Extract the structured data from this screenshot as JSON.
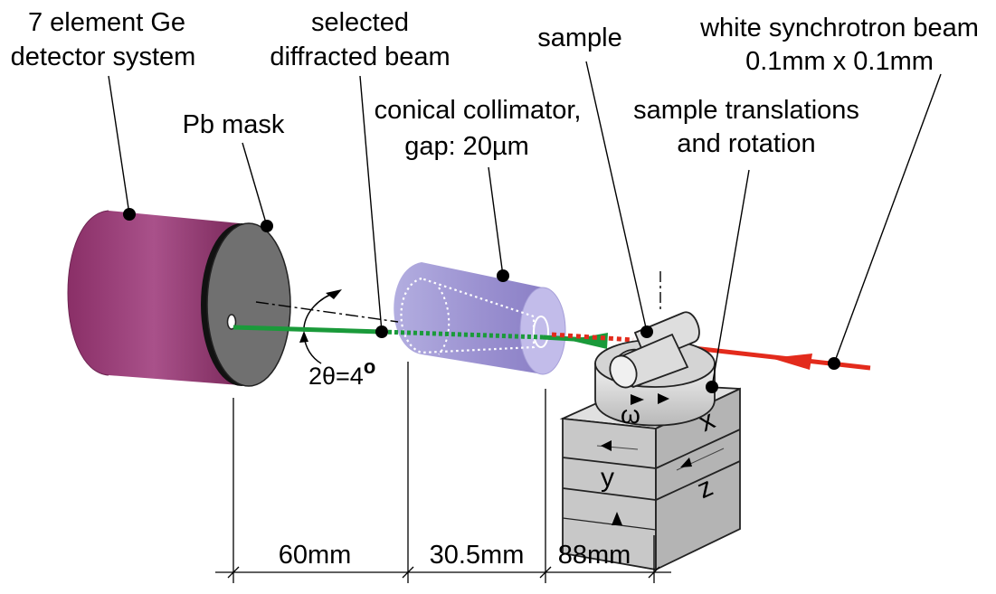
{
  "labels": {
    "detector": [
      "7 element Ge",
      "detector system"
    ],
    "diffracted": [
      "selected",
      "diffracted beam"
    ],
    "sample": "sample",
    "beam": [
      "white synchrotron beam",
      "0.1mm x 0.1mm"
    ],
    "mask": "Pb mask",
    "collimator": [
      "conical collimator,",
      "gap: 20µm"
    ],
    "stage": [
      "sample translations",
      "and rotation"
    ],
    "angle": "2θ=4",
    "angle_sup": "o"
  },
  "stage_axes": {
    "omega": "ω",
    "x": "x",
    "y": "y",
    "z": "z"
  },
  "dimensions": [
    "60mm",
    "30.5mm",
    "88mm"
  ],
  "colors": {
    "detector": "#9b3f77",
    "mask": "#6e6e6e",
    "collimator": "#9d92d2",
    "diffracted_beam": "#1a9a3a",
    "incident_beam": "#e32b1c",
    "stage": "#cccccc"
  }
}
